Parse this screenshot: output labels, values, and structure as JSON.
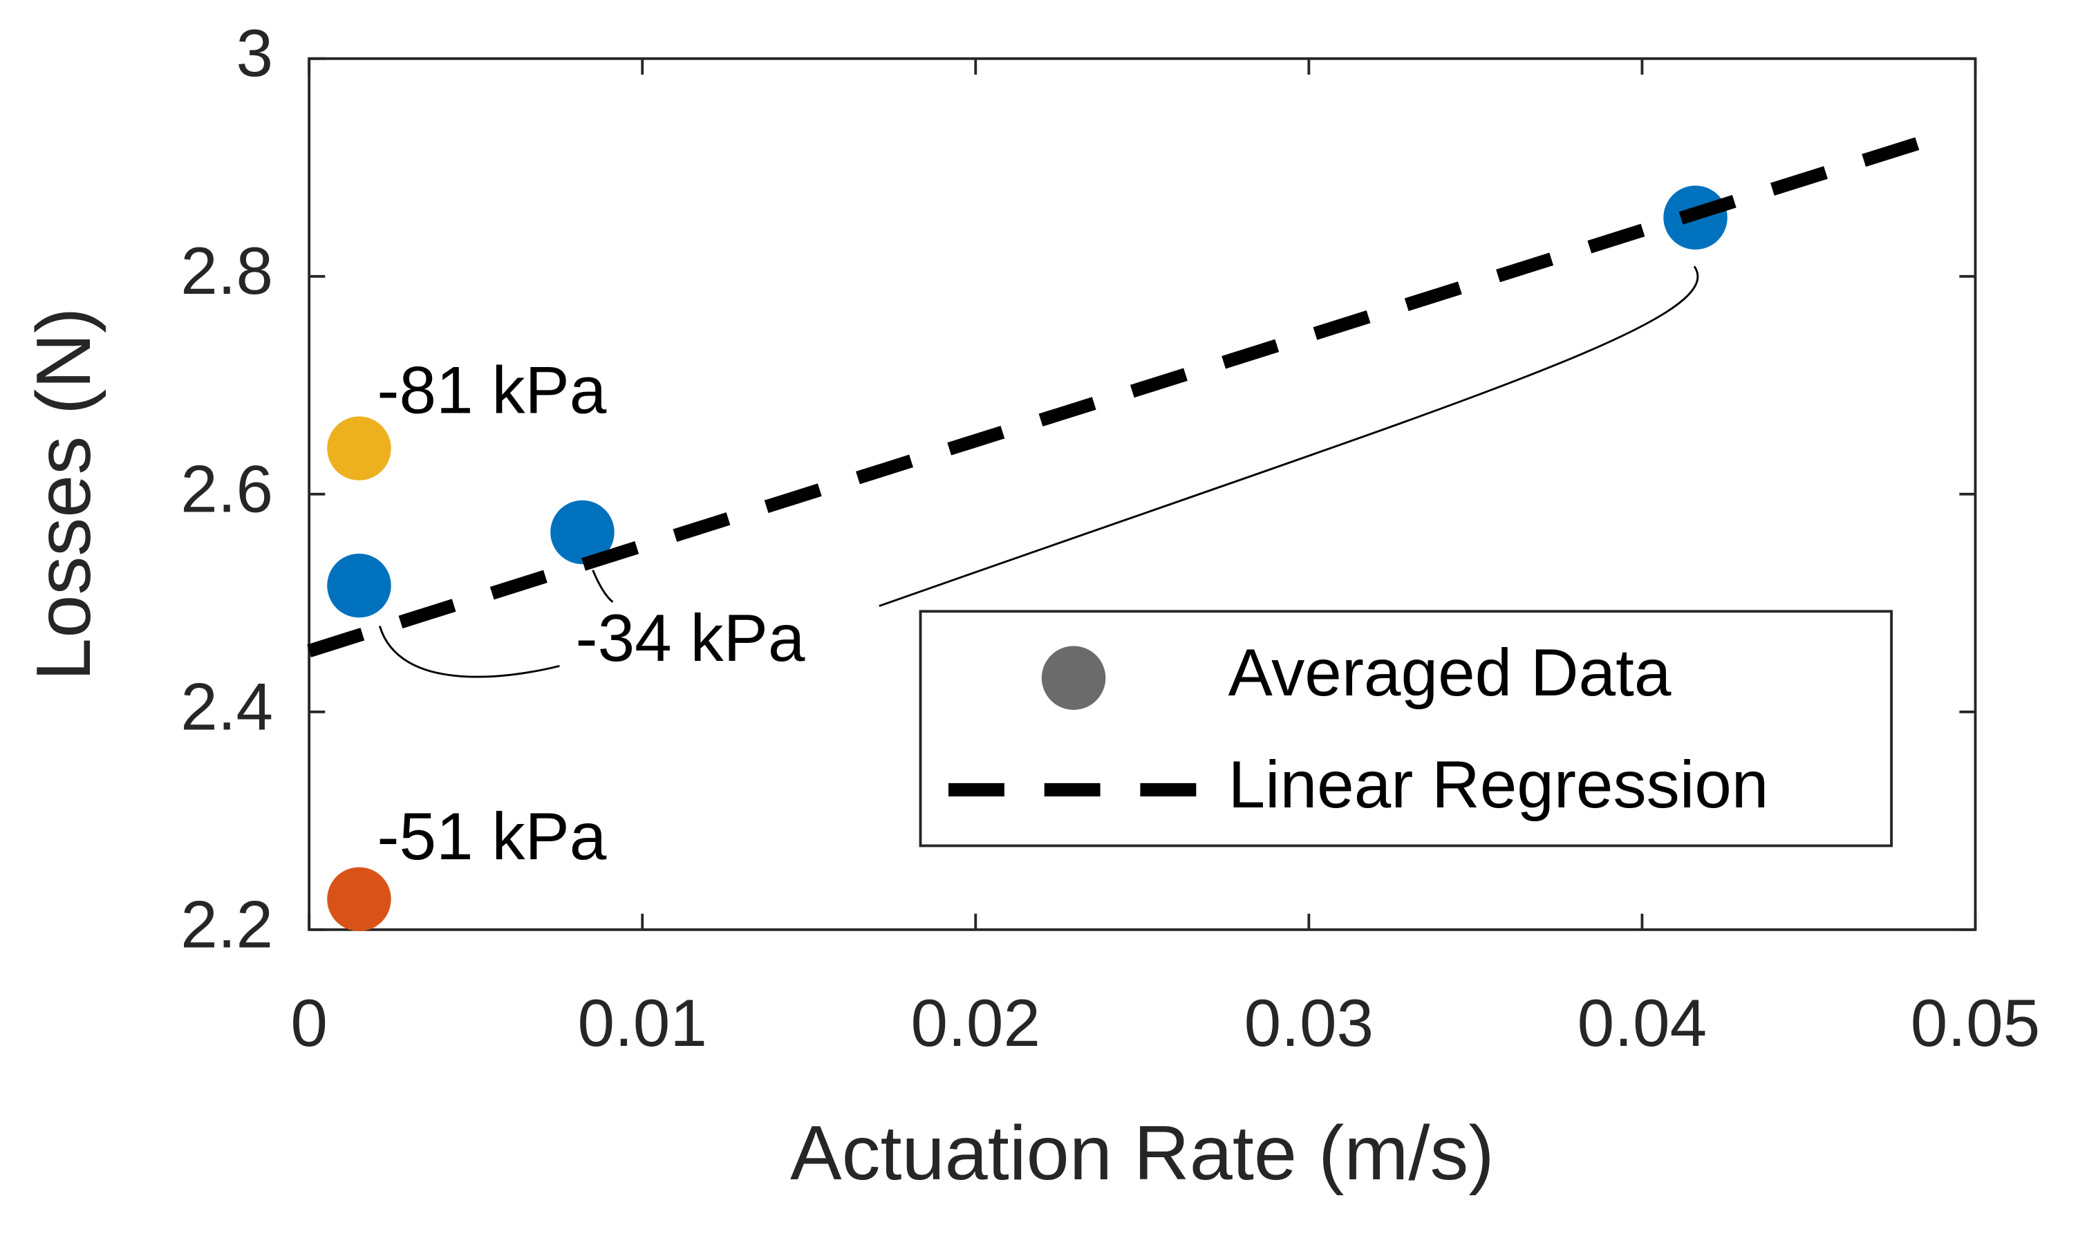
{
  "chart_data": {
    "type": "scatter",
    "xlabel": "Actuation Rate (m/s)",
    "ylabel": "Losses (N)",
    "xlim": [
      0,
      0.05
    ],
    "ylim": [
      2.2,
      3
    ],
    "xticks": [
      0,
      0.01,
      0.02,
      0.03,
      0.04,
      0.05
    ],
    "yticks": [
      2.2,
      2.4,
      2.6,
      2.8,
      3
    ],
    "series": [
      {
        "name": "Averaged Data",
        "color": "#6b6b6b",
        "x": [
          0.0015,
          0.0015,
          0.0082,
          0.0416,
          0.0015
        ],
        "values": [
          2.642,
          2.516,
          2.565,
          2.854,
          2.228
        ],
        "colors": [
          "#EDB120",
          "#0072BD",
          "#0072BD",
          "#0072BD",
          "#D95319"
        ]
      },
      {
        "name": "Linear Regression",
        "color": "#000000",
        "style": "dashed",
        "x": [
          0,
          0.0493
        ],
        "values": [
          2.456,
          2.932
        ]
      }
    ],
    "annotations": [
      "-81 kPa",
      "-34 kPa",
      "-51 kPa"
    ],
    "legend": "lower right"
  }
}
